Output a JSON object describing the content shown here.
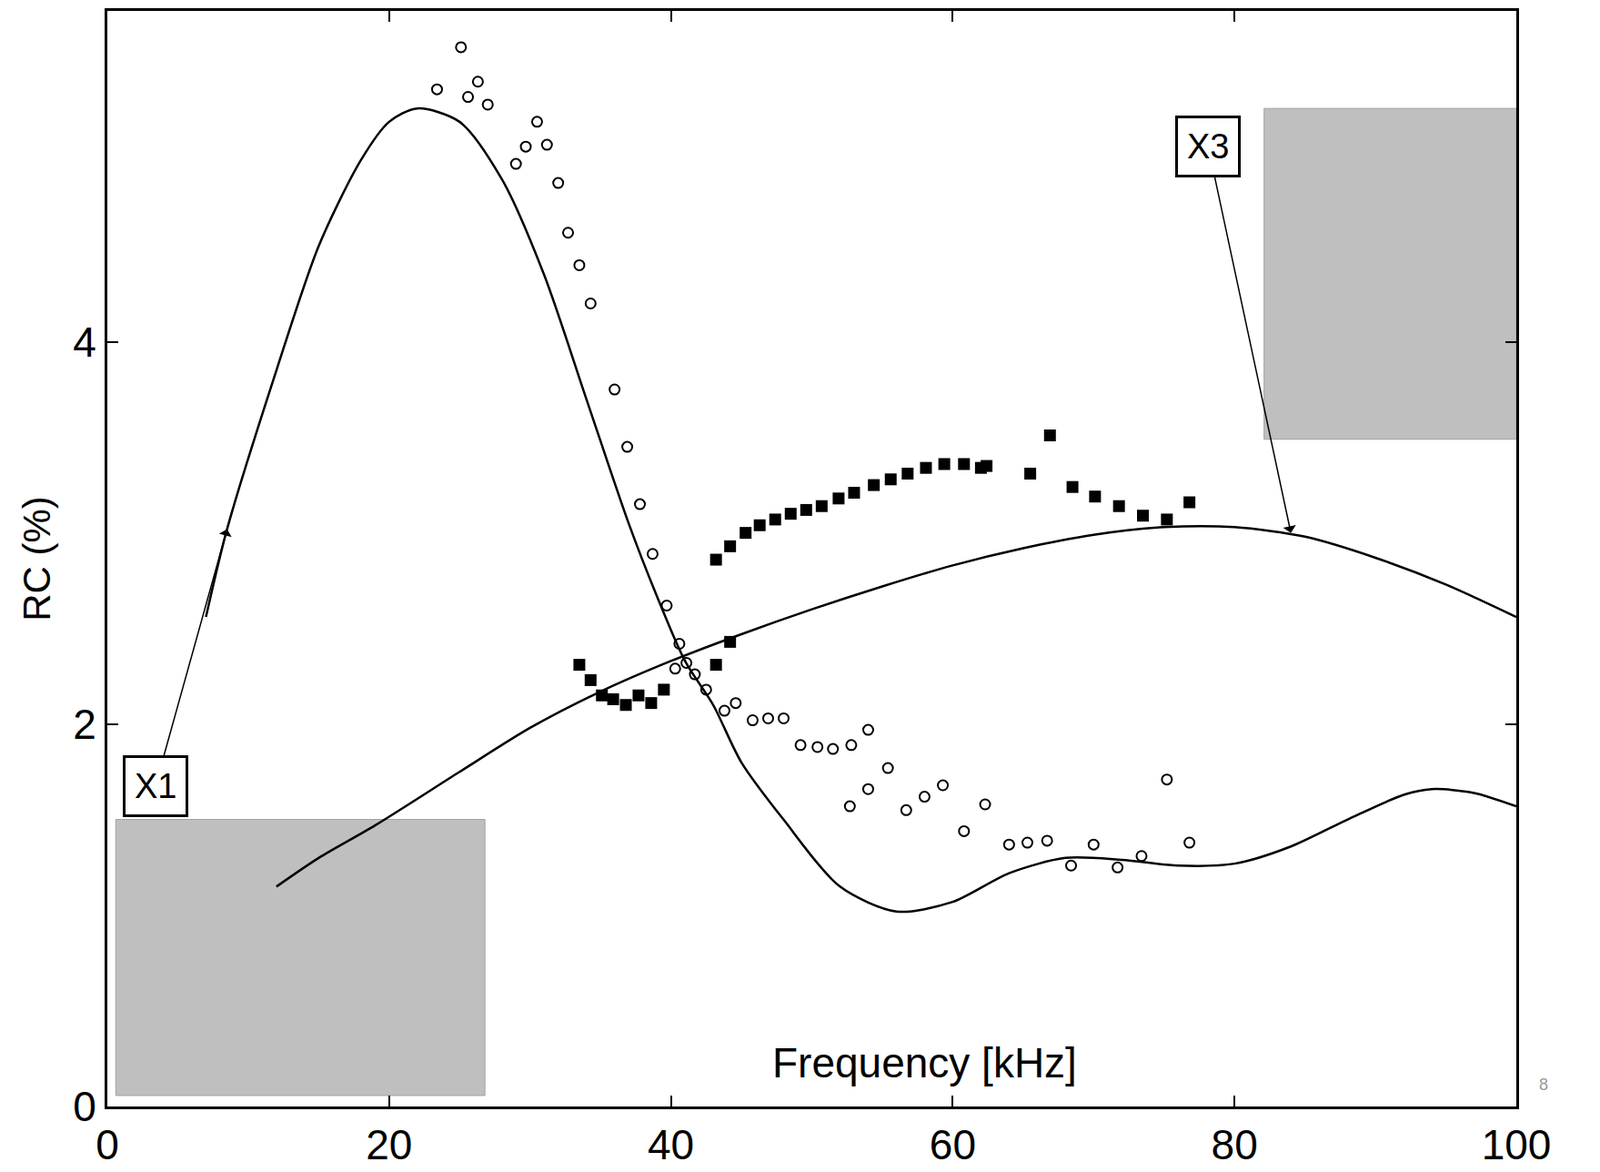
{
  "chart_data": {
    "type": "scatter",
    "x_label": "Frequency [kHz]",
    "y_label": "RC (%)",
    "xlim": [
      0,
      100
    ],
    "ylim": [
      0,
      5.73
    ],
    "xticks": [
      0,
      20,
      40,
      60,
      80,
      100
    ],
    "yticks": [
      0,
      2,
      4
    ],
    "grid": false,
    "series": [
      {
        "type": "line",
        "color": "#000000",
        "line_style": "solid",
        "x": [
          7,
          8.5,
          12,
          15,
          18,
          20,
          22,
          25,
          28,
          31,
          34,
          37,
          39,
          41,
          43,
          45,
          48,
          52,
          56,
          60,
          64,
          68,
          72,
          76,
          80,
          84,
          88,
          92,
          94,
          97,
          100
        ],
        "values": [
          2.56,
          3.02,
          3.85,
          4.5,
          4.95,
          5.15,
          5.22,
          5.15,
          4.85,
          4.35,
          3.7,
          3.05,
          2.67,
          2.33,
          2.1,
          1.8,
          1.5,
          1.15,
          1.02,
          1.07,
          1.22,
          1.3,
          1.29,
          1.26,
          1.27,
          1.36,
          1.5,
          1.63,
          1.66,
          1.64,
          1.57
        ]
      },
      {
        "type": "line",
        "color": "#000000",
        "line_style": "solid",
        "x": [
          12,
          15,
          19,
          25,
          30,
          35,
          40,
          45,
          50,
          55,
          60,
          65,
          70,
          75,
          80,
          85,
          90,
          95,
          100
        ],
        "values": [
          1.15,
          1.3,
          1.47,
          1.75,
          1.98,
          2.17,
          2.33,
          2.47,
          2.6,
          2.72,
          2.83,
          2.92,
          2.99,
          3.03,
          3.03,
          2.98,
          2.87,
          2.73,
          2.56
        ]
      },
      {
        "type": "scatter",
        "marker": "circle-open",
        "color": "#000000",
        "x": [
          23.4,
          25.1,
          25.6,
          26.3,
          27.0,
          29.0,
          29.7,
          30.5,
          31.2,
          32.0,
          32.7,
          33.5,
          34.3,
          36.0,
          36.9,
          37.8,
          38.7,
          39.7,
          40.6,
          40.3,
          41.1,
          41.7,
          42.5,
          43.8,
          44.6,
          45.8,
          46.9,
          48.0,
          49.2,
          50.4,
          51.5,
          52.8,
          54.0,
          52.7,
          54.0,
          55.4,
          56.7,
          58.0,
          59.3,
          60.8,
          62.3,
          64.0,
          65.3,
          66.7,
          68.4,
          70.0,
          71.7,
          73.4,
          75.2,
          76.8
        ],
        "values": [
          5.32,
          5.54,
          5.28,
          5.36,
          5.24,
          4.93,
          5.02,
          5.15,
          5.03,
          4.83,
          4.57,
          4.4,
          4.2,
          3.75,
          3.45,
          3.15,
          2.89,
          2.62,
          2.42,
          2.29,
          2.32,
          2.26,
          2.18,
          2.07,
          2.11,
          2.02,
          2.03,
          2.03,
          1.89,
          1.88,
          1.87,
          1.89,
          1.97,
          1.57,
          1.66,
          1.77,
          1.55,
          1.62,
          1.68,
          1.44,
          1.58,
          1.37,
          1.38,
          1.39,
          1.26,
          1.37,
          1.25,
          1.31,
          1.71,
          1.38
        ]
      },
      {
        "type": "scatter",
        "marker": "square",
        "color": "#000000",
        "x": [
          33.5,
          34.3,
          35.1,
          35.9,
          36.8,
          37.7,
          38.6,
          39.5,
          43.2,
          44.2,
          43.2,
          44.2,
          45.3,
          46.3,
          47.4,
          48.5,
          49.6,
          50.7,
          51.9,
          53.0,
          54.4,
          55.6,
          56.8,
          58.1,
          59.4,
          60.8,
          62.0,
          62.4,
          65.5,
          66.9,
          68.5,
          70.1,
          71.8,
          73.5,
          75.2,
          76.8
        ],
        "values": [
          2.31,
          2.23,
          2.15,
          2.13,
          2.1,
          2.15,
          2.11,
          2.18,
          2.31,
          2.43,
          2.86,
          2.93,
          3.0,
          3.04,
          3.07,
          3.1,
          3.12,
          3.14,
          3.18,
          3.21,
          3.25,
          3.28,
          3.31,
          3.34,
          3.36,
          3.36,
          3.34,
          3.35,
          3.31,
          3.51,
          3.24,
          3.19,
          3.14,
          3.09,
          3.07,
          3.16
        ]
      }
    ],
    "annotations": [
      {
        "text": "X1",
        "x": 8.5,
        "y": 3.02
      },
      {
        "text": "X3",
        "x": 84,
        "y": 3.0
      },
      {
        "text": "8"
      }
    ]
  }
}
